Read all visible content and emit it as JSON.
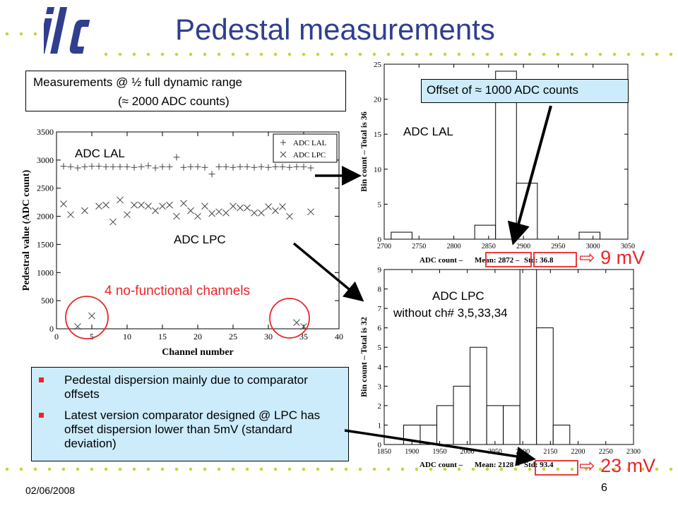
{
  "header": {
    "title": "Pedestal measurements",
    "logo_text": "ilc"
  },
  "measurement_box": {
    "line1": "Measurements @ ½ full dynamic range",
    "line2": "(≈ 2000 ADC counts)"
  },
  "offset_box": {
    "text": "Offset of ≈ 1000 ADC counts"
  },
  "labels": {
    "adc_lal_main": "ADC LAL",
    "adc_lpc_main": "ADC LPC",
    "nonfunc": "4 no-functional channels",
    "adc_lal_hist": "ADC LAL",
    "adc_lpc_hist_1": "ADC LPC",
    "adc_lpc_hist_2": "without ch# 3,5,33,34",
    "lal_mv": "⇨ 9 mV",
    "lpc_mv": "⇨ 23 mV"
  },
  "bullets": [
    "Pedestal dispersion mainly due to comparator offsets",
    "Latest version comparator designed @ LPC has offset dispersion  lower than 5mV (standard deviation)"
  ],
  "footer": {
    "date": "02/06/2008",
    "page": "6"
  },
  "colors": {
    "title": "#2f3e8f",
    "accent_red": "#e8262a",
    "box_fill": "#ccecfb",
    "dots": "#c4d63a"
  },
  "chart_data": [
    {
      "type": "scatter",
      "xlabel": "Channel number",
      "ylabel": "Pedestral value (ADC count)",
      "xlim": [
        0,
        40
      ],
      "ylim": [
        0,
        3500
      ],
      "xticks": [
        0,
        5,
        10,
        15,
        20,
        25,
        30,
        35,
        40
      ],
      "yticks": [
        0,
        500,
        1000,
        1500,
        2000,
        2500,
        3000,
        3500
      ],
      "legend_position": "top-right",
      "series": [
        {
          "name": "ADC LAL",
          "marker": "plus",
          "x": [
            1,
            2,
            3,
            4,
            5,
            6,
            7,
            8,
            9,
            10,
            11,
            12,
            13,
            14,
            15,
            16,
            17,
            18,
            19,
            20,
            21,
            22,
            23,
            24,
            25,
            26,
            27,
            28,
            29,
            30,
            31,
            32,
            33,
            34,
            35,
            36
          ],
          "y": [
            2890,
            2880,
            2860,
            2880,
            2890,
            2890,
            2880,
            2880,
            2880,
            2880,
            2870,
            2880,
            2900,
            2860,
            2880,
            2880,
            3050,
            2870,
            2880,
            2880,
            2870,
            2750,
            2880,
            2880,
            2870,
            2880,
            2880,
            2870,
            2880,
            2870,
            2880,
            2880,
            2870,
            2880,
            2880,
            2860
          ]
        },
        {
          "name": "ADC LPC",
          "marker": "x",
          "x": [
            1,
            2,
            3,
            4,
            5,
            6,
            7,
            8,
            9,
            10,
            11,
            12,
            13,
            14,
            15,
            16,
            17,
            18,
            19,
            20,
            21,
            22,
            23,
            24,
            25,
            26,
            27,
            28,
            29,
            30,
            31,
            32,
            33,
            34,
            35,
            36
          ],
          "y": [
            2220,
            2030,
            40,
            2100,
            230,
            2180,
            2200,
            1900,
            2290,
            2030,
            2200,
            2200,
            2180,
            2100,
            2180,
            2200,
            2000,
            2230,
            2100,
            2000,
            2180,
            2050,
            2080,
            2060,
            2180,
            2150,
            2150,
            2060,
            2060,
            2170,
            2100,
            2170,
            2000,
            110,
            40,
            2080
          ]
        }
      ]
    },
    {
      "type": "bar",
      "name": "ADC LAL histogram",
      "xlabel": "ADC count",
      "ylabel": "Bin count – Total is 36",
      "stats": {
        "mean_label": "Mean: 2872",
        "std_label": "Std: 36.8"
      },
      "xlim": [
        2700,
        3050
      ],
      "ylim": [
        0,
        25
      ],
      "xticks": [
        2700,
        2750,
        2800,
        2850,
        2900,
        2950,
        3000,
        3050
      ],
      "yticks": [
        0,
        5,
        10,
        15,
        20,
        25
      ],
      "bins": [
        [
          2710,
          2740,
          1
        ],
        [
          2830,
          2860,
          2
        ],
        [
          2860,
          2890,
          24
        ],
        [
          2890,
          2920,
          8
        ],
        [
          2980,
          3010,
          1
        ]
      ]
    },
    {
      "type": "bar",
      "name": "ADC LPC histogram",
      "xlabel": "ADC count",
      "ylabel": "Bin count – Total is 32",
      "stats": {
        "mean_label": "Mean: 2128",
        "std_label": "Std: 93.4"
      },
      "xlim": [
        1850,
        2300
      ],
      "ylim": [
        0,
        9
      ],
      "xticks": [
        1850,
        1900,
        1950,
        2000,
        2050,
        2100,
        2150,
        2200,
        2250,
        2300
      ],
      "yticks": [
        0,
        1,
        2,
        3,
        4,
        5,
        6,
        7,
        8,
        9
      ],
      "bins": [
        [
          1885,
          1915,
          1
        ],
        [
          1915,
          1945,
          1
        ],
        [
          1945,
          1975,
          2
        ],
        [
          1975,
          2005,
          3
        ],
        [
          2005,
          2035,
          5
        ],
        [
          2035,
          2065,
          2
        ],
        [
          2065,
          2095,
          2
        ],
        [
          2095,
          2125,
          9
        ],
        [
          2125,
          2155,
          6
        ],
        [
          2155,
          2185,
          1
        ]
      ]
    }
  ]
}
